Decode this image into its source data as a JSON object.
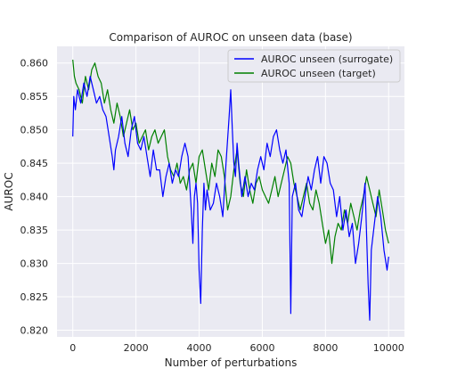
{
  "chart_data": {
    "type": "line",
    "title": "Comparison of AUROC on unseen data (base)",
    "xlabel": "Number of perturbations",
    "ylabel": "AUROC",
    "xlim": [
      -500,
      10500
    ],
    "ylim": [
      0.819,
      0.8625
    ],
    "xticks": [
      0,
      2000,
      4000,
      6000,
      8000,
      10000
    ],
    "yticks": [
      0.82,
      0.825,
      0.83,
      0.835,
      0.84,
      0.845,
      0.85,
      0.855,
      0.86
    ],
    "grid": true,
    "legend": "top-right",
    "series": [
      {
        "name": "AUROC unseen (surrogate)",
        "color": "#0000ff",
        "x": [
          0,
          30,
          80,
          150,
          250,
          350,
          450,
          550,
          650,
          750,
          850,
          950,
          1050,
          1150,
          1250,
          1300,
          1350,
          1450,
          1550,
          1650,
          1750,
          1850,
          1950,
          2050,
          2150,
          2250,
          2350,
          2450,
          2550,
          2650,
          2750,
          2850,
          2950,
          3050,
          3150,
          3250,
          3350,
          3450,
          3550,
          3650,
          3750,
          3800,
          3850,
          3900,
          3950,
          4000,
          4050,
          4100,
          4150,
          4200,
          4250,
          4350,
          4450,
          4550,
          4650,
          4750,
          4850,
          4950,
          5000,
          5050,
          5100,
          5150,
          5200,
          5250,
          5350,
          5450,
          5550,
          5650,
          5750,
          5850,
          5950,
          6050,
          6150,
          6250,
          6350,
          6450,
          6550,
          6650,
          6750,
          6850,
          6900,
          6950,
          7050,
          7150,
          7250,
          7350,
          7450,
          7550,
          7650,
          7750,
          7850,
          7950,
          8050,
          8150,
          8250,
          8350,
          8450,
          8550,
          8650,
          8750,
          8850,
          8950,
          9050,
          9150,
          9250,
          9350,
          9400,
          9450,
          9550,
          9650,
          9750,
          9850,
          9950,
          10000
        ],
        "values": [
          0.849,
          0.855,
          0.853,
          0.856,
          0.854,
          0.857,
          0.855,
          0.858,
          0.856,
          0.854,
          0.855,
          0.853,
          0.852,
          0.849,
          0.846,
          0.844,
          0.847,
          0.849,
          0.852,
          0.848,
          0.846,
          0.85,
          0.852,
          0.848,
          0.847,
          0.849,
          0.846,
          0.843,
          0.847,
          0.844,
          0.844,
          0.84,
          0.843,
          0.845,
          0.842,
          0.844,
          0.843,
          0.846,
          0.848,
          0.846,
          0.838,
          0.833,
          0.84,
          0.842,
          0.839,
          0.829,
          0.824,
          0.835,
          0.842,
          0.838,
          0.841,
          0.838,
          0.839,
          0.842,
          0.84,
          0.837,
          0.845,
          0.852,
          0.856,
          0.85,
          0.845,
          0.843,
          0.848,
          0.845,
          0.84,
          0.843,
          0.84,
          0.842,
          0.841,
          0.844,
          0.846,
          0.844,
          0.848,
          0.846,
          0.849,
          0.85,
          0.847,
          0.845,
          0.847,
          0.842,
          0.8225,
          0.84,
          0.842,
          0.838,
          0.837,
          0.84,
          0.843,
          0.841,
          0.844,
          0.846,
          0.842,
          0.846,
          0.845,
          0.842,
          0.841,
          0.837,
          0.84,
          0.835,
          0.838,
          0.834,
          0.836,
          0.83,
          0.833,
          0.837,
          0.842,
          0.827,
          0.8215,
          0.832,
          0.836,
          0.84,
          0.837,
          0.832,
          0.829,
          0.831
        ]
      },
      {
        "name": "AUROC unseen (target)",
        "color": "#008000",
        "x": [
          0,
          50,
          100,
          200,
          300,
          400,
          500,
          600,
          700,
          800,
          900,
          1000,
          1100,
          1200,
          1300,
          1400,
          1500,
          1600,
          1700,
          1800,
          1900,
          2000,
          2100,
          2200,
          2300,
          2400,
          2500,
          2600,
          2700,
          2800,
          2900,
          3000,
          3100,
          3200,
          3300,
          3400,
          3500,
          3600,
          3700,
          3800,
          3900,
          4000,
          4100,
          4200,
          4300,
          4400,
          4500,
          4600,
          4700,
          4800,
          4900,
          5000,
          5100,
          5200,
          5300,
          5400,
          5500,
          5600,
          5700,
          5800,
          5900,
          6000,
          6100,
          6200,
          6300,
          6400,
          6500,
          6600,
          6700,
          6800,
          6900,
          7000,
          7100,
          7200,
          7300,
          7400,
          7500,
          7600,
          7700,
          7800,
          7900,
          8000,
          8100,
          8200,
          8300,
          8400,
          8500,
          8600,
          8700,
          8800,
          8900,
          9000,
          9100,
          9200,
          9300,
          9400,
          9500,
          9600,
          9700,
          9800,
          9900,
          10000
        ],
        "values": [
          0.8605,
          0.858,
          0.857,
          0.856,
          0.854,
          0.858,
          0.856,
          0.859,
          0.86,
          0.858,
          0.857,
          0.854,
          0.856,
          0.853,
          0.851,
          0.854,
          0.852,
          0.849,
          0.851,
          0.853,
          0.85,
          0.851,
          0.848,
          0.849,
          0.85,
          0.847,
          0.849,
          0.85,
          0.848,
          0.849,
          0.85,
          0.846,
          0.844,
          0.843,
          0.845,
          0.842,
          0.843,
          0.841,
          0.844,
          0.845,
          0.842,
          0.846,
          0.847,
          0.844,
          0.841,
          0.845,
          0.843,
          0.847,
          0.846,
          0.843,
          0.838,
          0.84,
          0.844,
          0.847,
          0.842,
          0.84,
          0.844,
          0.841,
          0.839,
          0.842,
          0.843,
          0.841,
          0.84,
          0.839,
          0.841,
          0.843,
          0.84,
          0.842,
          0.844,
          0.846,
          0.845,
          0.842,
          0.84,
          0.838,
          0.84,
          0.842,
          0.839,
          0.838,
          0.841,
          0.839,
          0.836,
          0.833,
          0.835,
          0.83,
          0.834,
          0.836,
          0.835,
          0.838,
          0.836,
          0.839,
          0.837,
          0.835,
          0.838,
          0.84,
          0.843,
          0.841,
          0.839,
          0.837,
          0.841,
          0.838,
          0.835,
          0.833
        ]
      }
    ]
  }
}
